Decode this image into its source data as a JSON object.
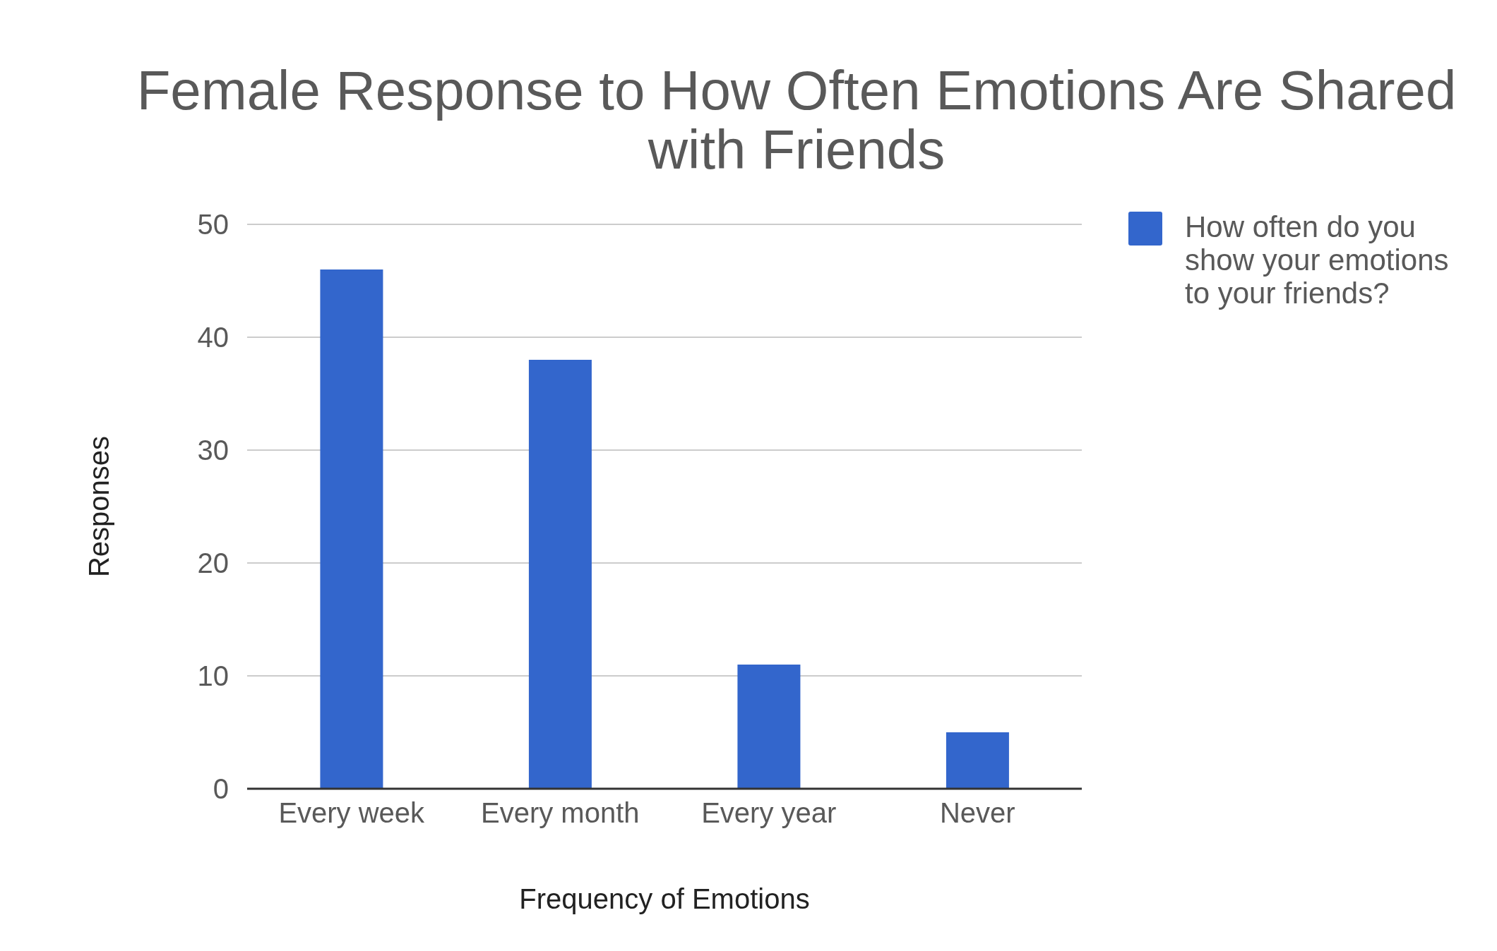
{
  "chart_data": {
    "type": "bar",
    "title": "Female Response to How Often Emotions Are Shared with Friends",
    "xlabel": "Frequency of Emotions",
    "ylabel": "Responses",
    "categories": [
      "Every week",
      "Every month",
      "Every year",
      "Never"
    ],
    "series": [
      {
        "name": "How often do you show your emotions to your friends?",
        "color": "#3366cc",
        "values": [
          46,
          38,
          11,
          5
        ]
      }
    ],
    "ylim": [
      0,
      50
    ],
    "yticks": [
      0,
      10,
      20,
      30,
      40,
      50
    ],
    "grid": "y",
    "legend": "top right"
  }
}
